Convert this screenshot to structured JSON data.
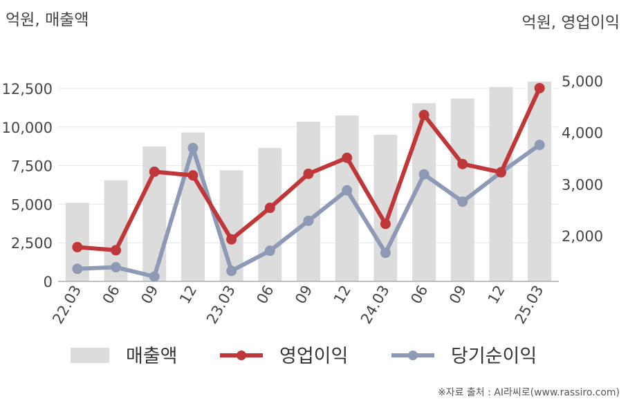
{
  "chart_data": {
    "type": "bar+line",
    "left_axis_label": "억원, 매출액",
    "right_axis_label": "억원, 영업이익",
    "categories": [
      "22.03",
      "06",
      "09",
      "12",
      "23.03",
      "06",
      "09",
      "12",
      "24.03",
      "06",
      "09",
      "12",
      "25.03"
    ],
    "left_ticks": [
      "0",
      "2,500",
      "5,000",
      "7,500",
      "10,000",
      "12,500"
    ],
    "left_tick_values": [
      0,
      2500,
      5000,
      7500,
      10000,
      12500
    ],
    "right_ticks": [
      "2,000",
      "3,000",
      "4,000",
      "5,000"
    ],
    "right_tick_values": [
      2000,
      3000,
      4000,
      5000
    ],
    "ylim_left": [
      0,
      12500
    ],
    "ylim_right": [
      1000,
      5000
    ],
    "grid": true,
    "series": [
      {
        "name": "매출액",
        "type": "bar",
        "axis": "left",
        "color": "#dcdcdc",
        "values": [
          5100,
          6550,
          8750,
          9650,
          7200,
          8650,
          10350,
          10750,
          9500,
          11550,
          11850,
          12600,
          12950
        ]
      },
      {
        "name": "영업이익",
        "type": "line",
        "axis": "right",
        "color": "#c0373a",
        "values": [
          1780,
          1720,
          3240,
          3170,
          1930,
          2540,
          3200,
          3510,
          2230,
          4340,
          3390,
          3230,
          4860
        ]
      },
      {
        "name": "당기순이익",
        "type": "line",
        "axis": "right",
        "color": "#8e9ab5",
        "values": [
          1360,
          1390,
          1210,
          3700,
          1320,
          1710,
          2290,
          2880,
          1670,
          3190,
          2660,
          3230,
          3760
        ]
      }
    ],
    "legend_position": "bottom"
  },
  "source_note": "※자료 출처 : AI라씨로(www.rassiro.com)"
}
